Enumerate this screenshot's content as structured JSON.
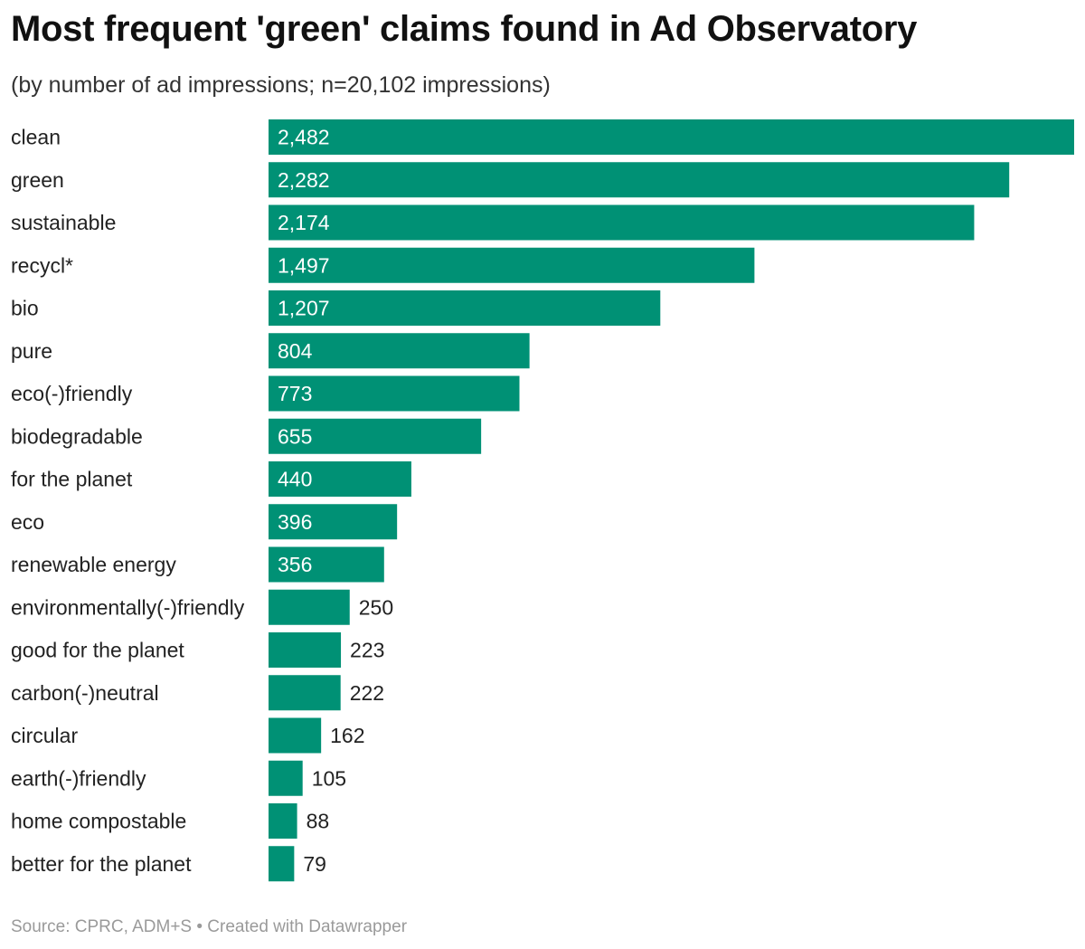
{
  "header": {
    "title": "Most frequent 'green' claims found in Ad Observatory",
    "subtitle": "(by number of ad impressions; n=20,102 impressions)"
  },
  "footer": {
    "source": "Source: CPRC, ADM+S • Created with Datawrapper"
  },
  "colors": {
    "bar": "#009175",
    "label_inside": "#ffffff",
    "label_outside": "#222222"
  },
  "chart_data": {
    "type": "bar",
    "orientation": "horizontal",
    "title": "Most frequent 'green' claims found in Ad Observatory",
    "subtitle": "(by number of ad impressions; n=20,102 impressions)",
    "categories": [
      "clean",
      "green",
      "sustainable",
      "recycl*",
      "bio",
      "pure",
      "eco(-)friendly",
      "biodegradable",
      "for the planet",
      "eco",
      "renewable energy",
      "environmentally(-)friendly",
      "good for the planet",
      "carbon(-)neutral",
      "circular",
      "earth(-)friendly",
      "home compostable",
      "better for the planet"
    ],
    "values": [
      2482,
      2282,
      2174,
      1497,
      1207,
      804,
      773,
      655,
      440,
      396,
      356,
      250,
      223,
      222,
      162,
      105,
      88,
      79
    ],
    "value_labels": [
      "2,482",
      "2,282",
      "2,174",
      "1,497",
      "1,207",
      "804",
      "773",
      "655",
      "440",
      "396",
      "356",
      "250",
      "223",
      "222",
      "162",
      "105",
      "88",
      "79"
    ],
    "xlim": [
      0,
      2482
    ],
    "grid": false,
    "legend": "none"
  }
}
